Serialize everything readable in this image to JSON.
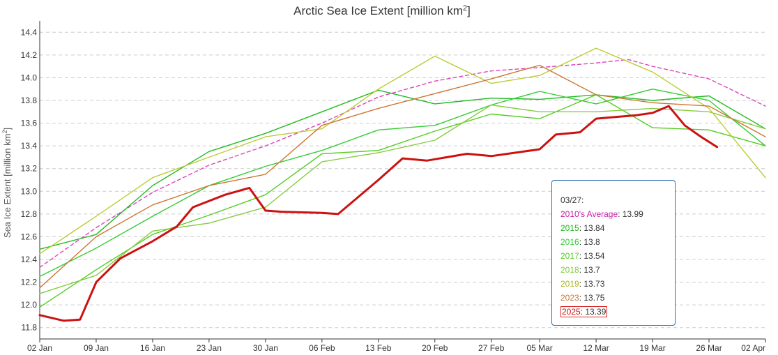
{
  "chart_data": {
    "type": "line",
    "title": "Arctic Sea Ice Extent [million km",
    "title_sup": "2",
    "title_end": "]",
    "ylabel": "Sea Ice Extent [million km",
    "ylabel_sup": "2",
    "ylabel_end": "]",
    "ylim": [
      11.7,
      14.5
    ],
    "yticks": [
      11.8,
      12.0,
      12.2,
      12.4,
      12.6,
      12.8,
      13.0,
      13.2,
      13.4,
      13.6,
      13.8,
      14.0,
      14.2,
      14.4
    ],
    "xlim": [
      "2025-01-02",
      "2025-04-02"
    ],
    "xticks": [
      {
        "date": "2025-01-02",
        "label": "02 Jan"
      },
      {
        "date": "2025-01-09",
        "label": "09 Jan"
      },
      {
        "date": "2025-01-16",
        "label": "16 Jan"
      },
      {
        "date": "2025-01-23",
        "label": "23 Jan"
      },
      {
        "date": "2025-01-30",
        "label": "30 Jan"
      },
      {
        "date": "2025-02-06",
        "label": "06 Feb"
      },
      {
        "date": "2025-02-13",
        "label": "13 Feb"
      },
      {
        "date": "2025-02-20",
        "label": "20 Feb"
      },
      {
        "date": "2025-02-27",
        "label": "27 Feb"
      },
      {
        "date": "2025-03-05",
        "label": "05 Mar"
      },
      {
        "date": "2025-03-12",
        "label": "12 Mar"
      },
      {
        "date": "2025-03-19",
        "label": "19 Mar"
      },
      {
        "date": "2025-03-26",
        "label": "26 Mar"
      },
      {
        "date": "2025-04-02",
        "label": "02 Apr"
      }
    ],
    "grid": "horizontal-dashed",
    "series": [
      {
        "name": "2010's Average",
        "color": "#dd44bb",
        "dashed": true,
        "x": [
          "2025-01-02",
          "2025-01-09",
          "2025-01-16",
          "2025-01-23",
          "2025-01-30",
          "2025-02-06",
          "2025-02-13",
          "2025-02-20",
          "2025-02-27",
          "2025-03-05",
          "2025-03-12",
          "2025-03-16",
          "2025-03-19",
          "2025-03-26",
          "2025-04-02"
        ],
        "values": [
          12.33,
          12.68,
          12.99,
          13.23,
          13.4,
          13.6,
          13.83,
          13.97,
          14.06,
          14.09,
          14.13,
          14.16,
          14.1,
          13.99,
          13.75
        ]
      },
      {
        "name": "2015",
        "color": "#22bb22",
        "x": [
          "2025-01-02",
          "2025-01-09",
          "2025-01-16",
          "2025-01-23",
          "2025-01-30",
          "2025-02-06",
          "2025-02-13",
          "2025-02-20",
          "2025-02-27",
          "2025-03-05",
          "2025-03-12",
          "2025-03-19",
          "2025-03-26",
          "2025-04-02"
        ],
        "values": [
          12.49,
          12.62,
          13.05,
          13.35,
          13.51,
          13.7,
          13.89,
          13.77,
          13.82,
          13.81,
          13.85,
          13.8,
          13.84,
          13.55
        ]
      },
      {
        "name": "2016",
        "color": "#33cc33",
        "x": [
          "2025-01-02",
          "2025-01-09",
          "2025-01-16",
          "2025-01-23",
          "2025-01-30",
          "2025-02-06",
          "2025-02-13",
          "2025-02-20",
          "2025-02-27",
          "2025-03-05",
          "2025-03-12",
          "2025-03-19",
          "2025-03-26",
          "2025-04-02"
        ],
        "values": [
          12.25,
          12.5,
          12.78,
          13.05,
          13.22,
          13.36,
          13.54,
          13.58,
          13.76,
          13.88,
          13.77,
          13.9,
          13.8,
          13.4
        ]
      },
      {
        "name": "2017",
        "color": "#55cc22",
        "x": [
          "2025-01-02",
          "2025-01-09",
          "2025-01-16",
          "2025-01-23",
          "2025-01-30",
          "2025-02-06",
          "2025-02-13",
          "2025-02-20",
          "2025-02-27",
          "2025-03-05",
          "2025-03-12",
          "2025-03-19",
          "2025-03-26",
          "2025-04-02"
        ],
        "values": [
          11.98,
          12.31,
          12.62,
          12.79,
          12.97,
          13.33,
          13.36,
          13.53,
          13.68,
          13.64,
          13.85,
          13.56,
          13.54,
          13.4
        ]
      },
      {
        "name": "2018",
        "color": "#88cc44",
        "x": [
          "2025-01-02",
          "2025-01-09",
          "2025-01-16",
          "2025-01-23",
          "2025-01-30",
          "2025-02-06",
          "2025-02-13",
          "2025-02-20",
          "2025-02-27",
          "2025-03-05",
          "2025-03-12",
          "2025-03-19",
          "2025-03-26",
          "2025-04-02"
        ],
        "values": [
          12.1,
          12.26,
          12.65,
          12.72,
          12.86,
          13.26,
          13.34,
          13.45,
          13.76,
          13.7,
          13.7,
          13.73,
          13.7,
          13.55
        ]
      },
      {
        "name": "2019",
        "color": "#bbcc33",
        "x": [
          "2025-01-02",
          "2025-01-09",
          "2025-01-16",
          "2025-01-23",
          "2025-01-30",
          "2025-02-06",
          "2025-02-13",
          "2025-02-20",
          "2025-02-27",
          "2025-03-05",
          "2025-03-12",
          "2025-03-19",
          "2025-03-26",
          "2025-04-02"
        ],
        "values": [
          12.45,
          12.78,
          13.12,
          13.3,
          13.48,
          13.55,
          13.9,
          14.19,
          13.95,
          14.02,
          14.26,
          14.05,
          13.73,
          13.12
        ]
      },
      {
        "name": "2023",
        "color": "#cc7733",
        "x": [
          "2025-01-02",
          "2025-01-09",
          "2025-01-16",
          "2025-01-23",
          "2025-01-30",
          "2025-02-06",
          "2025-02-13",
          "2025-02-20",
          "2025-02-27",
          "2025-03-05",
          "2025-03-12",
          "2025-03-19",
          "2025-03-26",
          "2025-04-02"
        ],
        "values": [
          12.15,
          12.6,
          12.88,
          13.05,
          13.15,
          13.58,
          13.73,
          13.86,
          13.99,
          14.11,
          13.85,
          13.78,
          13.75,
          13.48
        ]
      },
      {
        "name": "2025",
        "color": "#cc1111",
        "bold": true,
        "x": [
          "2025-01-02",
          "2025-01-05",
          "2025-01-07",
          "2025-01-09",
          "2025-01-12",
          "2025-01-16",
          "2025-01-19",
          "2025-01-21",
          "2025-01-25",
          "2025-01-28",
          "2025-01-30",
          "2025-02-01",
          "2025-02-06",
          "2025-02-08",
          "2025-02-13",
          "2025-02-16",
          "2025-02-19",
          "2025-02-24",
          "2025-02-27",
          "2025-03-05",
          "2025-03-07",
          "2025-03-10",
          "2025-03-12",
          "2025-03-17",
          "2025-03-19",
          "2025-03-21",
          "2025-03-23",
          "2025-03-25",
          "2025-03-27"
        ],
        "values": [
          11.91,
          11.86,
          11.87,
          12.2,
          12.41,
          12.56,
          12.69,
          12.86,
          12.97,
          13.03,
          12.83,
          12.82,
          12.81,
          12.8,
          13.1,
          13.29,
          13.27,
          13.33,
          13.31,
          13.37,
          13.5,
          13.52,
          13.64,
          13.67,
          13.69,
          13.75,
          13.58,
          13.48,
          13.39
        ]
      }
    ]
  },
  "tooltip": {
    "date": "03/27:",
    "rows": [
      {
        "name": "2010's Average",
        "value": "13.99",
        "color": "#c21fa8"
      },
      {
        "name": "2015",
        "value": "13.84",
        "color": "#22bb22"
      },
      {
        "name": "2016",
        "value": "13.8",
        "color": "#33cc33"
      },
      {
        "name": "2017",
        "value": "13.54",
        "color": "#55cc22"
      },
      {
        "name": "2018",
        "value": "13.7",
        "color": "#88cc44"
      },
      {
        "name": "2019",
        "value": "13.73",
        "color": "#aab822"
      },
      {
        "name": "2023",
        "value": "13.75",
        "color": "#cc7733"
      },
      {
        "name": "2025",
        "value": "13.39",
        "color": "#cc1111"
      }
    ]
  }
}
